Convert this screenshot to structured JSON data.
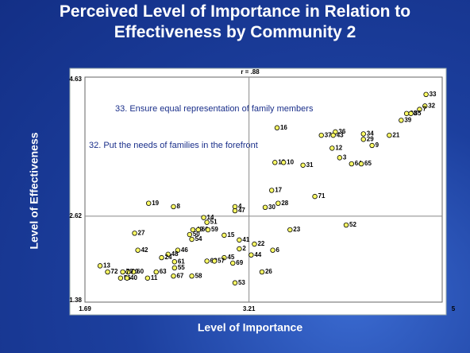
{
  "chart_data": {
    "type": "scatter",
    "title": "Perceived Level of Importance in Relation to Effectiveness by Community 2",
    "xlabel": "Level of Importance",
    "ylabel": "Level of Effectiveness",
    "annotations": [
      "r = .88",
      "33. Ensure equal representation of family members",
      "32. Put the needs of families in the forefront"
    ],
    "xlim": [
      1.69,
      5
    ],
    "xticks": [
      1.69,
      3.21,
      5
    ],
    "ylim": [
      1.38,
      4.63
    ],
    "yticks": [
      1.38,
      2.62,
      4.63
    ],
    "crosshair": true,
    "color": "#ffff66",
    "point_labels": [
      33,
      32,
      7,
      38,
      35,
      39,
      16,
      37,
      36,
      43,
      34,
      29,
      21,
      9,
      12,
      3,
      64,
      65,
      18,
      10,
      31,
      17,
      71,
      28,
      30,
      4,
      47,
      19,
      8,
      52,
      23,
      14,
      51,
      49,
      66,
      59,
      50,
      54,
      15,
      41,
      27,
      22,
      2,
      6,
      44,
      42,
      46,
      48,
      24,
      45,
      68,
      57,
      69,
      61,
      55,
      13,
      72,
      20,
      60,
      63,
      70,
      56,
      40,
      11,
      67,
      58,
      26,
      53
    ],
    "x": [
      4.85,
      4.84,
      4.79,
      4.67,
      4.71,
      4.62,
      3.47,
      3.88,
      4.01,
      3.99,
      4.27,
      4.27,
      4.51,
      4.35,
      3.98,
      4.05,
      4.16,
      4.25,
      3.45,
      3.53,
      3.71,
      3.42,
      3.82,
      3.48,
      3.36,
      3.08,
      3.08,
      2.28,
      2.51,
      4.11,
      3.59,
      2.79,
      2.82,
      2.69,
      2.74,
      2.83,
      2.66,
      2.68,
      2.98,
      3.12,
      2.15,
      3.26,
      3.12,
      3.43,
      3.23,
      2.18,
      2.55,
      2.46,
      2.4,
      2.98,
      2.82,
      2.89,
      3.06,
      2.52,
      2.52,
      1.83,
      1.9,
      2.09,
      2.14,
      2.35,
      2.04,
      2.02,
      2.08,
      2.27,
      2.51,
      2.68,
      3.33,
      3.08
    ],
    "y": [
      4.41,
      4.24,
      4.19,
      4.13,
      4.13,
      4.03,
      3.92,
      3.81,
      3.86,
      3.81,
      3.83,
      3.75,
      3.81,
      3.66,
      3.62,
      3.48,
      3.39,
      3.39,
      3.41,
      3.41,
      3.37,
      3.0,
      2.91,
      2.81,
      2.75,
      2.76,
      2.7,
      2.81,
      2.76,
      2.49,
      2.42,
      2.6,
      2.53,
      2.42,
      2.42,
      2.42,
      2.35,
      2.28,
      2.34,
      2.27,
      2.37,
      2.21,
      2.14,
      2.12,
      2.05,
      2.12,
      2.12,
      2.06,
      2.01,
      2.01,
      1.96,
      1.96,
      1.93,
      1.95,
      1.86,
      1.89,
      1.8,
      1.8,
      1.8,
      1.8,
      1.8,
      1.71,
      1.71,
      1.71,
      1.74,
      1.74,
      1.8,
      1.64
    ]
  }
}
